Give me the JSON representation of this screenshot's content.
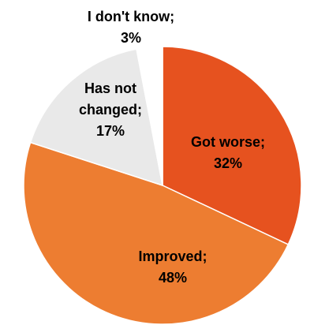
{
  "chart_data": {
    "type": "pie",
    "slices": [
      {
        "label": "Got worse",
        "value": 32,
        "color": "#e6521f",
        "label_color": "#000000",
        "label_text_color": "#000000"
      },
      {
        "label": "Improved",
        "value": 48,
        "color": "#ed7d31",
        "label_color": "#000000",
        "label_text_color": "#000000"
      },
      {
        "label": "Has not changed",
        "value": 17,
        "color": "#e9e9e9",
        "label_color": "#000000",
        "label_text_color": "#000000"
      },
      {
        "label": "I don't know",
        "value": 3,
        "color": "#ffffff",
        "label_color": "#000000",
        "label_text_color": "#000000"
      }
    ],
    "data_labels": [
      {
        "lines": [
          "Got worse;",
          "32%"
        ]
      },
      {
        "lines": [
          "Improved;",
          "48%"
        ]
      },
      {
        "lines": [
          "Has not",
          "changed;",
          "17%"
        ]
      },
      {
        "lines": [
          "I don't know;",
          "3%"
        ]
      }
    ],
    "start_angle": "top",
    "direction": "clockwise",
    "legend": "none"
  }
}
